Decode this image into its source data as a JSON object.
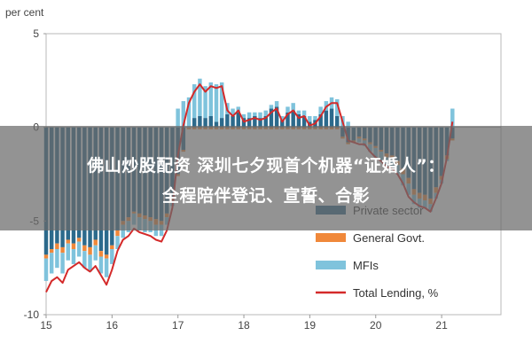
{
  "banner": {
    "line1": "佛山炒股配资 深圳七夕现首个机器“证婚人”：",
    "line2": "全程陪伴登记、宣誓、合影"
  },
  "chart_data": {
    "type": "bar",
    "ylabel": "per cent",
    "ylim": [
      -10,
      5
    ],
    "yticks": [
      5,
      0,
      -5,
      -10
    ],
    "xticks": [
      {
        "label": "15",
        "value": 2015
      },
      {
        "label": "16",
        "value": 2016
      },
      {
        "label": "17",
        "value": 2017
      },
      {
        "label": "18",
        "value": 2018
      },
      {
        "label": "19",
        "value": 2019
      },
      {
        "label": "20",
        "value": 2020
      },
      {
        "label": "21",
        "value": 2021
      }
    ],
    "x_start": 2015.0,
    "x_step": 0.0833,
    "grid": false,
    "legend_position": "bottom-right",
    "series": [
      {
        "name": "Private sector",
        "kind": "bar",
        "color": "#2c6a8c",
        "values": [
          -6.8,
          -6.5,
          -6.2,
          -6.4,
          -6.0,
          -6.2,
          -5.9,
          -6.3,
          -6.4,
          -6.0,
          -6.6,
          -6.8,
          -6.3,
          -5.5,
          -5.0,
          -4.8,
          -4.5,
          -4.6,
          -4.7,
          -4.8,
          -4.9,
          -5.0,
          -4.6,
          -3.8,
          -2.5,
          -1.2,
          0.0,
          0.5,
          0.6,
          0.5,
          0.6,
          0.3,
          0.5,
          0.7,
          0.6,
          0.8,
          0.5,
          0.5,
          0.6,
          0.5,
          0.6,
          1.0,
          1.1,
          0.4,
          0.8,
          0.9,
          0.7,
          0.6,
          0.3,
          0.4,
          0.7,
          0.9,
          1.0,
          0.6,
          -0.5,
          -0.8,
          -0.7,
          -0.5,
          -0.6,
          -0.8,
          -1.0,
          -1.2,
          -1.4,
          -1.5,
          -1.8,
          -2.2,
          -2.7,
          -3.3,
          -3.5,
          -3.6,
          -3.8,
          -3.2,
          -2.6,
          -1.5,
          -0.6
        ]
      },
      {
        "name": "General Govt.",
        "kind": "bar",
        "color": "#f0883a",
        "values": [
          -0.2,
          -0.2,
          -0.3,
          -0.3,
          -0.2,
          -0.3,
          -0.2,
          -0.3,
          -0.4,
          -0.3,
          -0.3,
          -0.2,
          -0.2,
          -0.3,
          -0.2,
          -0.2,
          -0.1,
          -0.2,
          -0.2,
          -0.2,
          -0.3,
          -0.2,
          -0.2,
          -0.2,
          -0.1,
          -0.1,
          -0.1,
          -0.1,
          -0.1,
          -0.1,
          -0.1,
          -0.1,
          -0.1,
          -0.1,
          -0.1,
          -0.1,
          -0.1,
          -0.1,
          -0.1,
          -0.1,
          -0.1,
          -0.1,
          -0.1,
          -0.1,
          -0.1,
          -0.1,
          -0.1,
          -0.1,
          -0.1,
          -0.1,
          -0.1,
          -0.1,
          -0.1,
          -0.1,
          -0.1,
          -0.1,
          -0.1,
          -0.1,
          -0.1,
          -0.1,
          -0.1,
          -0.1,
          -0.2,
          -0.2,
          -0.2,
          -0.3,
          -0.3,
          -0.3,
          -0.3,
          -0.3,
          -0.3,
          -0.3,
          -0.2,
          -0.2,
          -0.1
        ]
      },
      {
        "name": "MFIs",
        "kind": "bar",
        "color": "#7fc3dc",
        "values": [
          -1.2,
          -1.1,
          -1.0,
          -1.1,
          -0.9,
          -0.8,
          -0.8,
          -0.9,
          -0.9,
          -0.8,
          -0.9,
          -1.0,
          -0.8,
          -0.7,
          -0.7,
          -0.6,
          -0.6,
          -0.7,
          -0.7,
          -0.6,
          -0.6,
          -0.6,
          -0.4,
          -0.2,
          1.0,
          1.4,
          1.6,
          1.8,
          2.0,
          1.7,
          1.8,
          2.0,
          1.9,
          0.6,
          0.4,
          0.3,
          0.2,
          0.3,
          0.2,
          0.3,
          0.3,
          0.2,
          0.3,
          0.2,
          0.3,
          0.4,
          0.2,
          0.3,
          0.3,
          0.2,
          0.4,
          0.5,
          0.6,
          0.9,
          0.6,
          0.3,
          0.0,
          -0.2,
          -0.3,
          -0.4,
          -0.5,
          -0.5,
          -0.5,
          -0.5,
          -0.5,
          -0.6,
          -0.6,
          -0.5,
          -0.5,
          -0.4,
          -0.4,
          -0.3,
          -0.2,
          -0.1,
          1.0
        ]
      },
      {
        "name": "Total Lending, %",
        "kind": "line",
        "color": "#d42a2a",
        "values": [
          -8.8,
          -8.2,
          -8.0,
          -8.3,
          -7.6,
          -7.4,
          -7.2,
          -7.5,
          -7.7,
          -7.4,
          -7.9,
          -8.4,
          -7.6,
          -6.6,
          -6.0,
          -5.8,
          -5.4,
          -5.6,
          -5.7,
          -5.8,
          -6.0,
          -6.1,
          -5.5,
          -4.3,
          -1.5,
          0.1,
          1.3,
          1.9,
          2.3,
          1.9,
          2.2,
          2.1,
          2.2,
          0.9,
          0.6,
          0.9,
          0.3,
          0.4,
          0.5,
          0.4,
          0.5,
          0.8,
          1.0,
          0.3,
          0.7,
          0.9,
          0.5,
          0.6,
          0.1,
          0.2,
          0.6,
          1.1,
          1.3,
          1.3,
          0.3,
          -0.7,
          -0.8,
          -0.9,
          -0.9,
          -1.3,
          -1.6,
          -1.8,
          -2.1,
          -2.2,
          -2.5,
          -3.0,
          -3.7,
          -4.0,
          -4.2,
          -4.3,
          -4.5,
          -3.8,
          -3.0,
          -1.6,
          0.3
        ]
      }
    ]
  }
}
